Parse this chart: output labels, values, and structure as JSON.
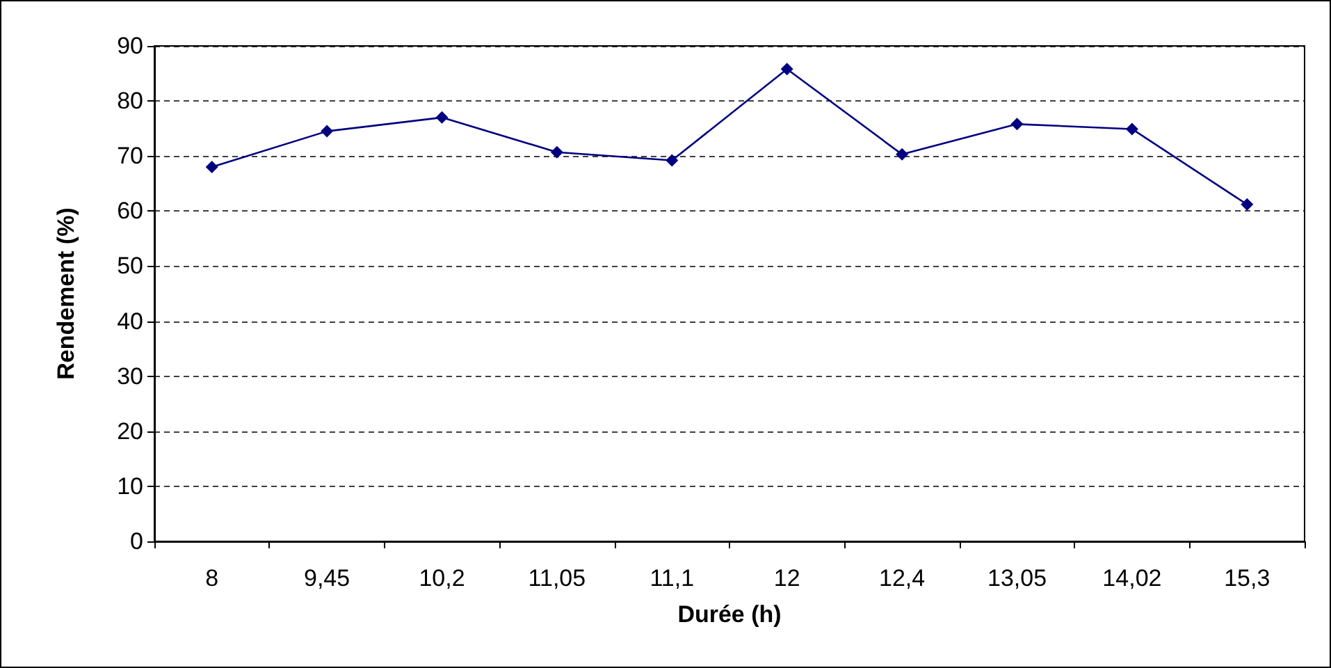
{
  "chart_data": {
    "type": "line",
    "xlabel": "Durée (h)",
    "ylabel": "Rendement (%)",
    "categories": [
      "8",
      "9,45",
      "10,2",
      "11,05",
      "11,1",
      "12",
      "12,4",
      "13,05",
      "14,02",
      "15,3"
    ],
    "series": [
      {
        "color": "#000080",
        "values": [
          68,
          74.5,
          77,
          70.7,
          69.2,
          85.8,
          70.3,
          75.8,
          74.9,
          61.2
        ]
      }
    ],
    "ylim": [
      0,
      90
    ],
    "yticks": [
      0,
      10,
      20,
      30,
      40,
      50,
      60,
      70,
      80,
      90
    ],
    "grid": "y",
    "marker": "diamond",
    "line_style": "solid"
  }
}
